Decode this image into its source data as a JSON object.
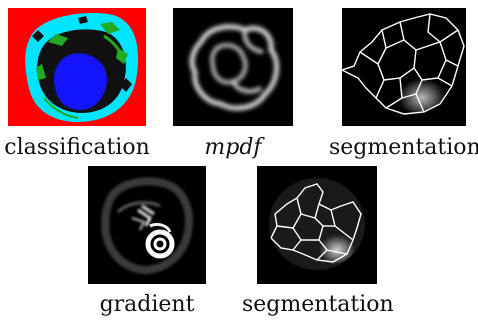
{
  "figure": {
    "panels": [
      {
        "id": "classification",
        "caption": "classification",
        "caption_style": "roman",
        "image": "classification-map",
        "colors": {
          "background": "#ff0000",
          "outer": "#00e5ff",
          "edge": "#22aa22",
          "inner": "#1010ff",
          "dark": "#000000"
        }
      },
      {
        "id": "mpdf",
        "caption": "mpdf",
        "caption_style": "italic-math",
        "image": "blurred-ring-grayscale"
      },
      {
        "id": "segmentation-top",
        "caption": "segmentation",
        "caption_style": "roman",
        "image": "region-boundaries-white"
      },
      {
        "id": "gradient",
        "caption": "gradient",
        "caption_style": "roman",
        "image": "gradient-magnitude-grayscale"
      },
      {
        "id": "segmentation-bottom",
        "caption": "segmentation",
        "caption_style": "roman",
        "image": "region-boundaries-white"
      }
    ]
  }
}
